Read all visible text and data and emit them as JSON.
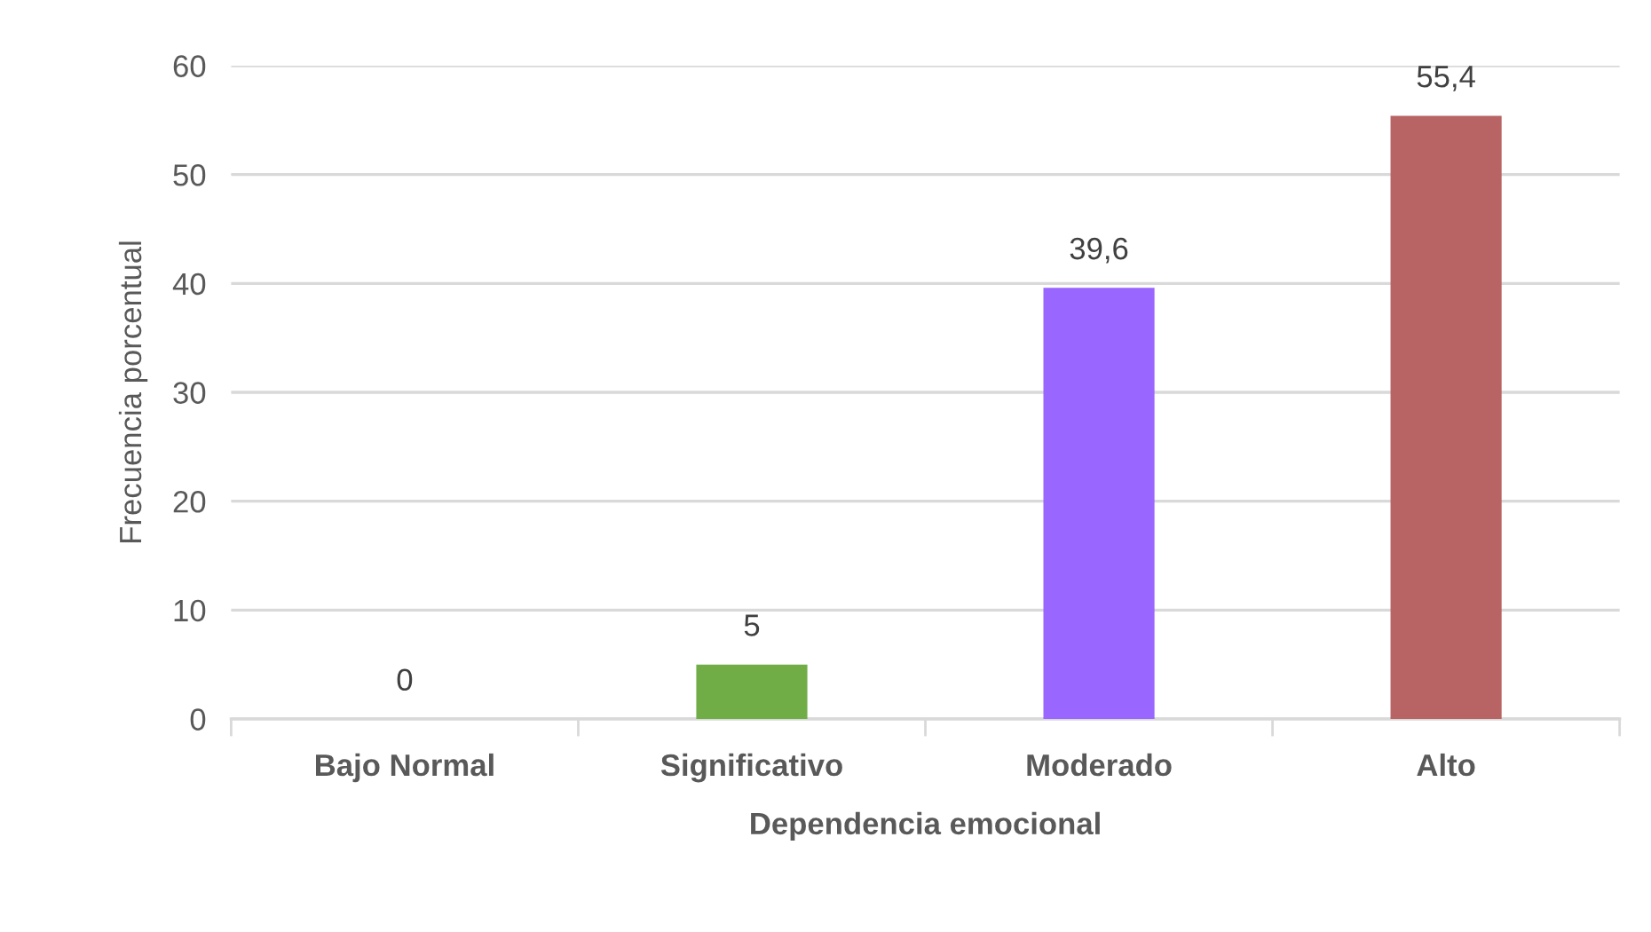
{
  "chart_data": {
    "type": "bar",
    "xlabel": "Dependencia emocional",
    "ylabel": "Frecuencia porcentual",
    "categories": [
      "Bajo Normal",
      "Significativo",
      "Moderado",
      "Alto"
    ],
    "values": [
      0,
      5,
      39.6,
      55.4
    ],
    "colors": [
      "#70ad47",
      "#70ad47",
      "#9966ff",
      "#b86464"
    ],
    "value_labels": [
      "0",
      "5",
      "39,6",
      "55,4"
    ],
    "ylim": [
      0,
      60
    ],
    "yticks": [
      0,
      10,
      20,
      30,
      40,
      50,
      60
    ],
    "grid": "y"
  }
}
